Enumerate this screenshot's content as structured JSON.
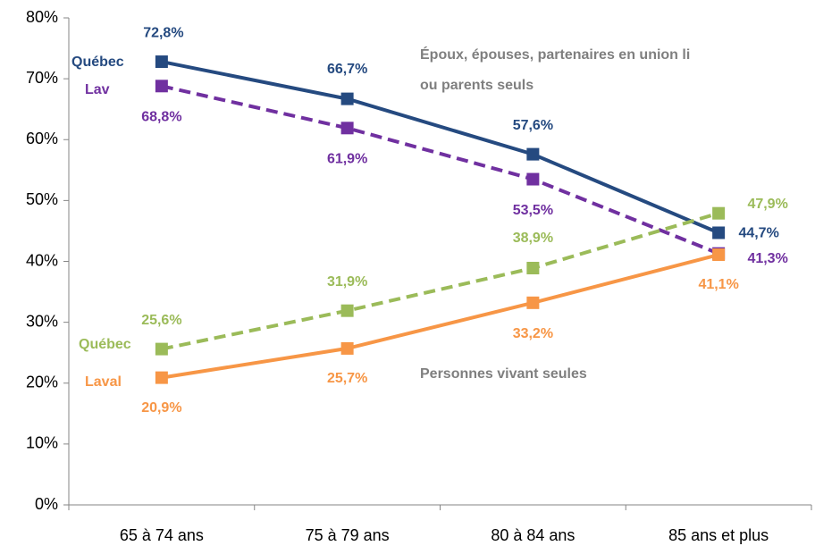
{
  "chart_data": {
    "type": "line",
    "categories": [
      "65 à 74 ans",
      "75 à 79 ans",
      "80 à 84 ans",
      "85 ans et plus"
    ],
    "series": [
      {
        "name": "Québec",
        "color": "#254a80",
        "dashed": false,
        "values": [
          72.8,
          66.7,
          57.6,
          44.7
        ],
        "value_labels": [
          "72,8%",
          "66,7%",
          "57,6%",
          "44,7%"
        ]
      },
      {
        "name": "Lav",
        "color": "#7030a0",
        "dashed": true,
        "values": [
          68.8,
          61.9,
          53.5,
          41.3
        ],
        "value_labels": [
          "68,8%",
          "61,9%",
          "53,5%",
          "41,3%"
        ]
      },
      {
        "name": "Québec",
        "color": "#9bbb59",
        "dashed": true,
        "values": [
          25.6,
          31.9,
          38.9,
          47.9
        ],
        "value_labels": [
          "25,6%",
          "31,9%",
          "38,9%",
          "47,9%"
        ]
      },
      {
        "name": "Laval",
        "color": "#f79646",
        "dashed": false,
        "values": [
          20.9,
          25.7,
          33.2,
          41.1
        ],
        "value_labels": [
          "20,9%",
          "25,7%",
          "33,2%",
          "41,1%"
        ]
      }
    ],
    "annotations": [
      "Époux, épouses, partenaires en union li",
      "ou parents seuls",
      "Personnes vivant seules"
    ],
    "ylim": [
      0,
      80
    ],
    "yticks": [
      {
        "value": 0,
        "label": "0%"
      },
      {
        "value": 10,
        "label": "10%"
      },
      {
        "value": 20,
        "label": "20%"
      },
      {
        "value": 30,
        "label": "30%"
      },
      {
        "value": 40,
        "label": "40%"
      },
      {
        "value": 50,
        "label": "50%"
      },
      {
        "value": 60,
        "label": "60%"
      },
      {
        "value": 70,
        "label": "70%"
      },
      {
        "value": 80,
        "label": "80%"
      }
    ],
    "grid": false
  }
}
